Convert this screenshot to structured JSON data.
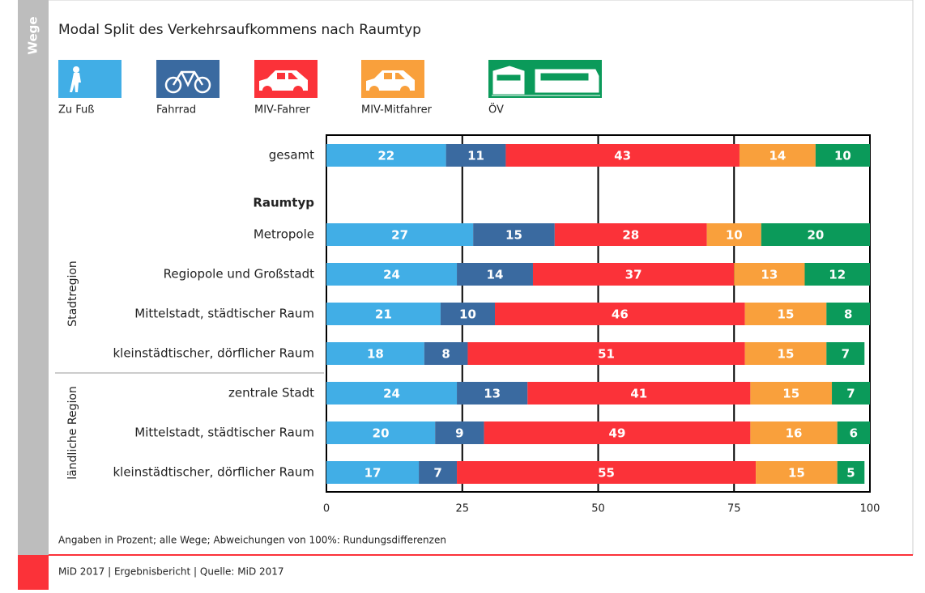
{
  "chart_data": {
    "type": "stacked-barh",
    "side_label": "Wege",
    "title": "Modal Split des Verkehrsaufkommens nach Raumtyp",
    "group_heading": "Raumtyp",
    "row_groups": [
      "Stadtregion",
      "ländliche Region"
    ],
    "categories": [
      "gesamt",
      "Metropole",
      "Regiopole und Großstadt",
      "Mittelstadt, städtischer Raum",
      "kleinstädtischer, dörflicher Raum",
      "zentrale Stadt",
      "Mittelstadt, städtischer Raum",
      "kleinstädtischer, dörflicher Raum"
    ],
    "series": [
      {
        "name": "Zu Fuß",
        "color": "#41aee6",
        "values": [
          22,
          27,
          24,
          21,
          18,
          24,
          20,
          17
        ]
      },
      {
        "name": "Fahrrad",
        "color": "#3a6aa0",
        "values": [
          11,
          15,
          14,
          10,
          8,
          13,
          9,
          7
        ]
      },
      {
        "name": "MIV-Fahrer",
        "color": "#fb3239",
        "values": [
          43,
          28,
          37,
          46,
          51,
          41,
          49,
          55
        ]
      },
      {
        "name": "MIV-Mitfahrer",
        "color": "#f9a03c",
        "values": [
          14,
          10,
          13,
          15,
          15,
          15,
          16,
          15
        ]
      },
      {
        "name": "ÖV",
        "color": "#0b9a5a",
        "values": [
          10,
          20,
          12,
          8,
          7,
          7,
          6,
          5
        ]
      }
    ],
    "xlim": [
      0,
      100
    ],
    "xticks": [
      0,
      25,
      50,
      75,
      100
    ],
    "grid": true,
    "note": "Angaben in Prozent; alle Wege; Abweichungen von 100%: Rundungsdifferenzen",
    "footer": "MiD 2017 | Ergebnisbericht | Quelle: MiD 2017"
  }
}
